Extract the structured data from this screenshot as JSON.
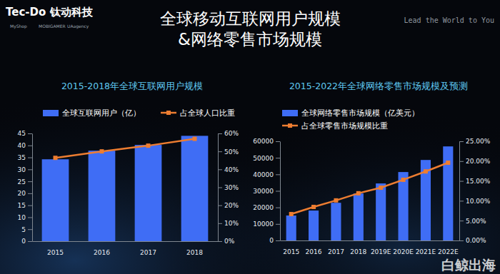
{
  "page": {
    "brand": "Tec-Do 钛动科技",
    "partners": [
      "MyShop",
      "MOBIGAMER",
      "UAagency"
    ],
    "title": [
      "全球移动互联网用户规模",
      "&网络零售市场规模"
    ],
    "slogan": "Lead the World to You",
    "watermark": "白鲸出海"
  },
  "chart_data": [
    {
      "type": "bar",
      "title": "2015-2018年全球互联网用户规模",
      "categories": [
        "2015",
        "2016",
        "2017",
        "2018"
      ],
      "series": [
        {
          "name": "全球互联网用户（亿）",
          "type": "bar",
          "color": "#3f6df5",
          "values": [
            34.2,
            37.8,
            40.2,
            44
          ]
        },
        {
          "name": "占全球人口比重",
          "type": "line",
          "axis": "y2",
          "color": "#ed7d31",
          "marker": "square",
          "values": [
            46.4,
            50,
            53.2,
            57
          ]
        }
      ],
      "ylim": [
        0,
        45
      ],
      "yticks": [
        0,
        5,
        10,
        15,
        20,
        25,
        30,
        35,
        40,
        45
      ],
      "y2lim": [
        0,
        60
      ],
      "y2ticks": [
        {
          "value": 0,
          "label": "0%"
        },
        {
          "value": 10,
          "label": "10%"
        },
        {
          "value": 20,
          "label": "20%"
        },
        {
          "value": 30,
          "label": "30%"
        },
        {
          "value": 40,
          "label": "40%"
        },
        {
          "value": 50,
          "label": "50%"
        },
        {
          "value": 60,
          "label": "60%"
        }
      ],
      "grid": false,
      "legend": "top"
    },
    {
      "type": "bar",
      "title": "2015-2022年全球网络零售市场规模及预测",
      "categories": [
        "2015",
        "2016",
        "2017",
        "2018",
        "2019E",
        "2020E",
        "2021E",
        "2022E"
      ],
      "series": [
        {
          "name": "全球网络零售市场规模（亿美元）",
          "type": "bar",
          "color": "#3f6df5",
          "values": [
            15100,
            18100,
            22800,
            28400,
            34500,
            41400,
            48700,
            56900
          ]
        },
        {
          "name": "占全球零售市场规模比重",
          "type": "line",
          "axis": "y2",
          "color": "#ed7d31",
          "marker": "square",
          "values": [
            6.65,
            8.45,
            10.1,
            11.9,
            13.3,
            15.3,
            17.4,
            19.6
          ]
        }
      ],
      "ylim": [
        0,
        60000
      ],
      "yticks": [
        0,
        10000,
        20000,
        30000,
        40000,
        50000,
        60000
      ],
      "y2lim": [
        0,
        25
      ],
      "y2ticks": [
        {
          "value": 0,
          "label": "0.00%"
        },
        {
          "value": 5,
          "label": "5.00%"
        },
        {
          "value": 10,
          "label": "10.00%"
        },
        {
          "value": 15,
          "label": "15.00%"
        },
        {
          "value": 20,
          "label": "20.00%"
        },
        {
          "value": 25,
          "label": "25.00%"
        }
      ],
      "grid": false,
      "legend": "top"
    }
  ]
}
